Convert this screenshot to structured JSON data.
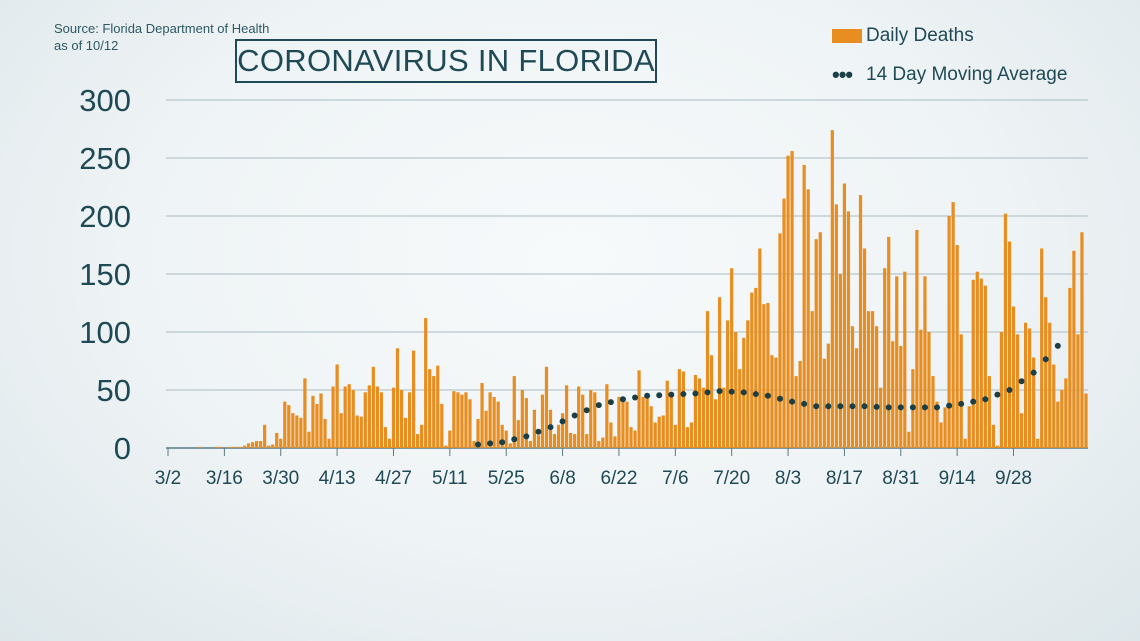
{
  "source": {
    "line1": "Source: Florida Department of Health",
    "line2": "as of 10/12"
  },
  "colors": {
    "bar": "#e88e20",
    "average": "#1b3f47",
    "text": "#1f4a55",
    "grid": "#a9bcc3"
  },
  "chart_data": {
    "type": "bar",
    "title": "CORONAVIRUS IN FLORIDA",
    "xlabel": "",
    "ylabel": "",
    "ylim": [
      0,
      300
    ],
    "yticks": [
      "0",
      "50",
      "100",
      "150",
      "200",
      "250",
      "300"
    ],
    "xtick_labels": [
      "3/2",
      "3/16",
      "3/30",
      "4/13",
      "4/27",
      "5/11",
      "5/25",
      "6/8",
      "6/22",
      "7/6",
      "7/20",
      "8/3",
      "8/17",
      "8/31",
      "9/14",
      "9/28"
    ],
    "legend_position": "top-right",
    "start_date": "3/2",
    "series": [
      {
        "name": "Daily Deaths",
        "kind": "bar",
        "values": [
          0,
          0,
          0,
          0,
          0,
          0,
          0,
          0,
          1,
          0,
          0,
          0,
          1,
          1,
          0,
          1,
          1,
          1,
          1,
          2,
          4,
          5,
          6,
          6,
          20,
          2,
          3,
          13,
          8,
          40,
          37,
          30,
          28,
          26,
          60,
          14,
          45,
          38,
          47,
          25,
          8,
          53,
          72,
          30,
          53,
          55,
          50,
          28,
          27,
          48,
          54,
          70,
          53,
          48,
          18,
          8,
          52,
          86,
          50,
          26,
          48,
          84,
          12,
          20,
          112,
          68,
          62,
          71,
          38,
          2,
          15,
          49,
          48,
          46,
          48,
          42,
          6,
          25,
          56,
          32,
          48,
          44,
          40,
          20,
          15,
          4,
          62,
          24,
          50,
          43,
          6,
          33,
          11,
          46,
          70,
          33,
          12,
          20,
          30,
          54,
          13,
          12,
          53,
          46,
          12,
          50,
          48,
          6,
          9,
          55,
          22,
          10,
          44,
          42,
          40,
          18,
          15,
          67,
          44,
          46,
          36,
          22,
          27,
          28,
          58,
          48,
          20,
          68,
          66,
          18,
          22,
          63,
          60,
          52,
          118,
          80,
          42,
          130,
          52,
          110,
          155,
          100,
          68,
          95,
          110,
          134,
          138,
          172,
          124,
          125,
          80,
          78,
          185,
          215,
          252,
          256,
          62,
          75,
          244,
          223,
          118,
          180,
          186,
          77,
          90,
          274,
          210,
          150,
          228,
          204,
          105,
          86,
          218,
          172,
          118,
          118,
          105,
          52,
          155,
          182,
          92,
          148,
          88,
          152,
          14,
          68,
          188,
          102,
          148,
          100,
          62,
          40,
          22,
          35,
          200,
          212,
          175,
          98,
          8,
          36,
          145,
          152,
          146,
          140,
          62,
          20,
          2,
          100,
          202,
          178,
          122,
          98,
          30,
          108,
          103,
          78,
          8,
          172,
          130,
          108,
          72,
          40,
          50,
          60,
          138,
          170,
          98,
          186,
          47
        ]
      },
      {
        "name": "14 Day Moving Average",
        "kind": "dotted-line",
        "x_days": [
          77,
          83,
          89,
          95,
          101,
          107,
          113,
          119,
          125,
          131,
          137,
          143,
          149,
          155,
          161,
          167,
          173,
          179,
          185,
          191,
          197,
          203,
          209,
          215,
          221
        ],
        "values": [
          3,
          5,
          10,
          18,
          28,
          37,
          42,
          45,
          46,
          47,
          49,
          48,
          45,
          40,
          36,
          36,
          36,
          35,
          35,
          35,
          38,
          42,
          50,
          65,
          88
        ]
      }
    ]
  }
}
